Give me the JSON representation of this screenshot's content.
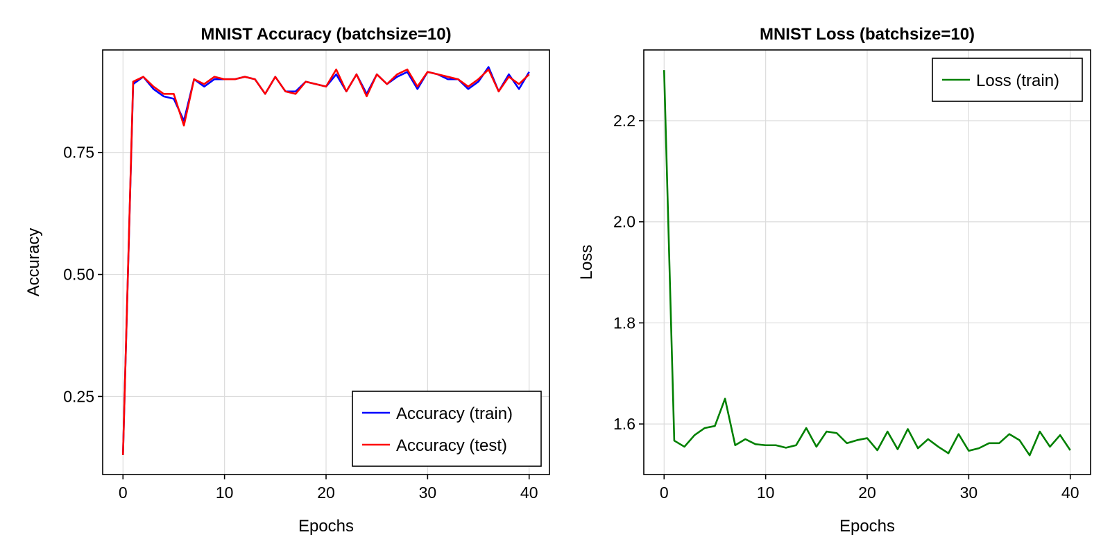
{
  "chart_data": [
    {
      "type": "line",
      "title": "MNIST Accuracy (batchsize=10)",
      "xlabel": "Epochs",
      "ylabel": "Accuracy",
      "xlim": [
        -2,
        42
      ],
      "ylim": [
        0.09,
        0.96
      ],
      "xticks": [
        0,
        10,
        20,
        30,
        40
      ],
      "xtick_labels": [
        "0",
        "10",
        "20",
        "30",
        "40"
      ],
      "yticks": [
        0.25,
        0.5,
        0.75
      ],
      "ytick_labels": [
        "0.25",
        "0.50",
        "0.75"
      ],
      "grid": true,
      "legend_position": "bottom-right",
      "x": [
        0,
        1,
        2,
        3,
        4,
        5,
        6,
        7,
        8,
        9,
        10,
        11,
        12,
        13,
        14,
        15,
        16,
        17,
        18,
        19,
        20,
        21,
        22,
        23,
        24,
        25,
        26,
        27,
        28,
        29,
        30,
        31,
        32,
        33,
        34,
        35,
        36,
        37,
        38,
        39,
        40
      ],
      "series": [
        {
          "name": "Accuracy (train)",
          "color": "#0000ff",
          "values": [
            0.13,
            0.89,
            0.905,
            0.88,
            0.865,
            0.86,
            0.815,
            0.9,
            0.885,
            0.9,
            0.9,
            0.9,
            0.905,
            0.9,
            0.87,
            0.905,
            0.875,
            0.875,
            0.895,
            0.89,
            0.885,
            0.91,
            0.875,
            0.91,
            0.87,
            0.91,
            0.89,
            0.905,
            0.915,
            0.88,
            0.915,
            0.91,
            0.9,
            0.9,
            0.88,
            0.895,
            0.925,
            0.875,
            0.91,
            0.88,
            0.915
          ]
        },
        {
          "name": "Accuracy (test)",
          "color": "#ff0000",
          "values": [
            0.13,
            0.895,
            0.905,
            0.885,
            0.87,
            0.87,
            0.805,
            0.9,
            0.89,
            0.905,
            0.9,
            0.9,
            0.905,
            0.9,
            0.87,
            0.905,
            0.875,
            0.87,
            0.895,
            0.89,
            0.885,
            0.92,
            0.875,
            0.91,
            0.865,
            0.91,
            0.89,
            0.91,
            0.92,
            0.885,
            0.915,
            0.91,
            0.905,
            0.9,
            0.885,
            0.9,
            0.92,
            0.875,
            0.905,
            0.89,
            0.91
          ]
        }
      ]
    },
    {
      "type": "line",
      "title": "MNIST Loss (batchsize=10)",
      "xlabel": "Epochs",
      "ylabel": "Loss",
      "xlim": [
        -2,
        42
      ],
      "ylim": [
        1.5,
        2.34
      ],
      "xticks": [
        0,
        10,
        20,
        30,
        40
      ],
      "xtick_labels": [
        "0",
        "10",
        "20",
        "30",
        "40"
      ],
      "yticks": [
        1.6,
        1.8,
        2.0,
        2.2
      ],
      "ytick_labels": [
        "1.6",
        "1.8",
        "2.0",
        "2.2"
      ],
      "grid": true,
      "legend_position": "top-right",
      "x": [
        0,
        1,
        2,
        3,
        4,
        5,
        6,
        7,
        8,
        9,
        10,
        11,
        12,
        13,
        14,
        15,
        16,
        17,
        18,
        19,
        20,
        21,
        22,
        23,
        24,
        25,
        26,
        27,
        28,
        29,
        30,
        31,
        32,
        33,
        34,
        35,
        36,
        37,
        38,
        39,
        40
      ],
      "series": [
        {
          "name": "Loss (train)",
          "color": "#008000",
          "values": [
            2.3,
            1.567,
            1.555,
            1.578,
            1.592,
            1.596,
            1.65,
            1.558,
            1.57,
            1.56,
            1.558,
            1.558,
            1.553,
            1.558,
            1.592,
            1.555,
            1.585,
            1.582,
            1.562,
            1.568,
            1.572,
            1.548,
            1.585,
            1.55,
            1.59,
            1.552,
            1.57,
            1.555,
            1.542,
            1.58,
            1.547,
            1.552,
            1.562,
            1.562,
            1.58,
            1.568,
            1.538,
            1.585,
            1.555,
            1.578,
            1.548
          ]
        }
      ]
    }
  ]
}
